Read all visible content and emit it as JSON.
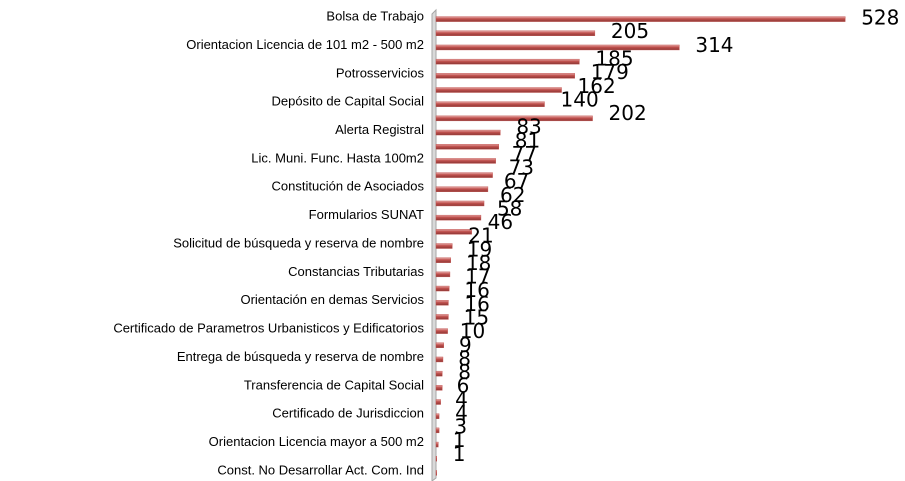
{
  "chart_data": {
    "type": "bar",
    "orientation": "horizontal",
    "categories": [
      "Bolsa de Trabajo",
      null,
      "Orientacion Licencia de 101 m2 - 500 m2",
      null,
      "Potrosservicios",
      null,
      "Depósito de Capital Social",
      null,
      "Alerta Registral",
      null,
      "Lic. Muni. Func. Hasta 100m2",
      null,
      "Constitución de Asociados",
      null,
      "Formularios SUNAT",
      null,
      "Solicitud de búsqueda y reserva de nombre",
      null,
      "Constancias Tributarias",
      null,
      "Orientación en demas Servicios",
      null,
      "Certificado de Parametros Urbanisticos y Edificatorios",
      null,
      "Entrega de búsqueda y reserva de nombre",
      null,
      "Transferencia de Capital Social",
      null,
      "Certificado de Jurisdiccion",
      null,
      "Orientacion Licencia mayor a 500 m2",
      null,
      "Const. No Desarrollar Act. Com. Ind"
    ],
    "values": [
      528,
      205,
      314,
      185,
      179,
      162,
      140,
      202,
      83,
      81,
      77,
      73,
      67,
      62,
      58,
      46,
      21,
      19,
      18,
      17,
      16,
      16,
      15,
      10,
      9,
      8,
      8,
      6,
      4,
      4,
      3,
      1,
      1
    ],
    "color": "#c0504d",
    "xlim": [
      0,
      600
    ],
    "data_labels": true
  }
}
